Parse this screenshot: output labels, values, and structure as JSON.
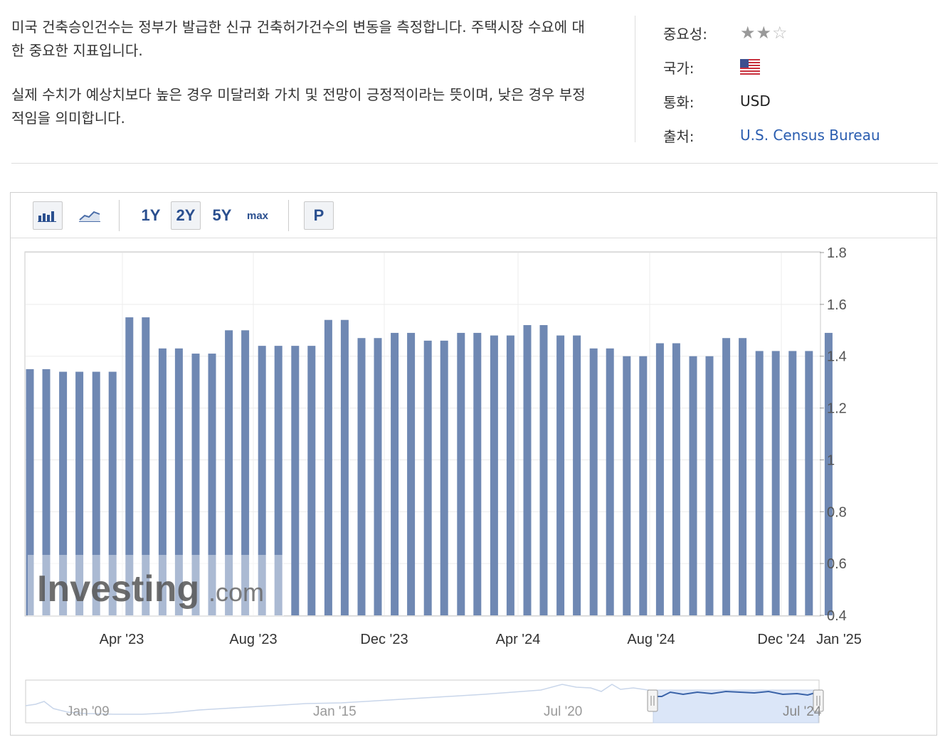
{
  "description": {
    "paragraph1": "미국 건축승인건수는 정부가 발급한 신규 건축허가건수의 변동을 측정합니다. 주택시장 수요에 대한 중요한 지표입니다.",
    "paragraph2": "실제 수치가 예상치보다 높은 경우 미달러화 가치 및 전망이 긍정적이라는 뜻이며, 낮은 경우 부정적임을 의미합니다."
  },
  "meta": {
    "importance_label": "중요성:",
    "importance_stars": 2,
    "importance_max": 3,
    "country_label": "국가:",
    "country_flag_icon": "us-flag-icon",
    "currency_label": "통화:",
    "currency_value": "USD",
    "source_label": "출처:",
    "source_value": "U.S. Census Bureau"
  },
  "toolbar": {
    "bar_chart_icon": "bar-chart-icon",
    "line_chart_icon": "line-chart-icon",
    "range_1y": "1Y",
    "range_2y": "2Y",
    "range_5y": "5Y",
    "range_max": "max",
    "selected_range": "2Y",
    "prelim_label": "P"
  },
  "watermark": {
    "brand": "Investing",
    "suffix": ".com"
  },
  "colors": {
    "bar": "#6f88b3",
    "link": "#2a5db0",
    "navigator_fill": "#dbe6f8",
    "navigator_line": "#3a63a8"
  },
  "chart_data": {
    "type": "bar",
    "x": [
      "2023-01",
      "2023-02",
      "2023-03",
      "2023-04",
      "2023-05",
      "2023-06",
      "2023-07",
      "2023-08",
      "2023-09",
      "2023-10",
      "2023-11",
      "2023-12",
      "2024-01",
      "2024-02",
      "2024-03",
      "2024-04",
      "2024-05",
      "2024-06",
      "2024-07",
      "2024-08",
      "2024-09",
      "2024-10",
      "2024-11",
      "2024-12",
      "2025-01"
    ],
    "values": [
      1.35,
      1.34,
      1.34,
      1.55,
      1.43,
      1.41,
      1.5,
      1.44,
      1.44,
      1.54,
      1.47,
      1.49,
      1.46,
      1.49,
      1.48,
      1.52,
      1.48,
      1.43,
      1.4,
      1.45,
      1.4,
      1.47,
      1.42,
      1.42,
      1.49
    ],
    "ylim": [
      0.4,
      1.8
    ],
    "y_ticks": [
      "1.8",
      "1.6",
      "1.4",
      "1.2",
      "1",
      "0.8",
      "0.6",
      "0.4"
    ],
    "x_tick_labels": [
      "Apr '23",
      "Aug '23",
      "Dec '23",
      "Apr '24",
      "Aug '24",
      "Dec '24",
      "Jan '25"
    ],
    "y_axis_position": "right",
    "grid": true,
    "navigator_labels": [
      "Jan '09",
      "Jan '15",
      "Jul '20",
      "Jul '24"
    ]
  }
}
